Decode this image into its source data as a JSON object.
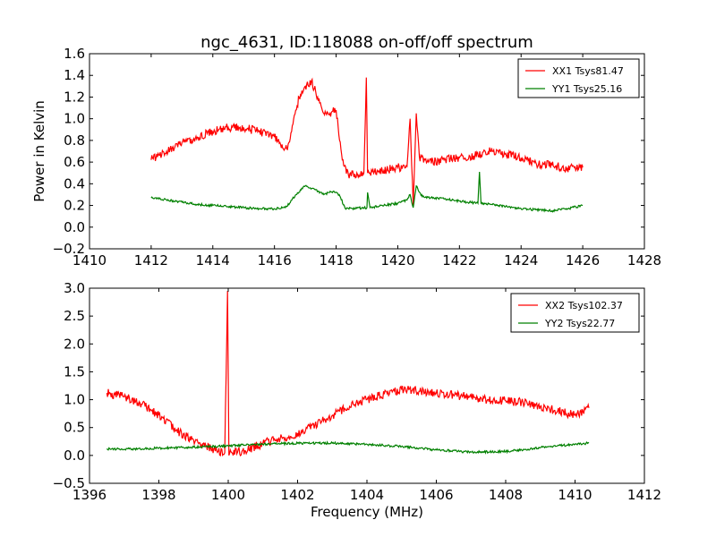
{
  "figure": {
    "title": "ngc_4631, ID:118088 on-off/off spectrum"
  },
  "chart_data": [
    {
      "type": "line",
      "title": "ngc_4631, ID:118088 on-off/off spectrum",
      "xlabel": "",
      "ylabel": "Power in Kelvin",
      "xlim": [
        1410,
        1428
      ],
      "ylim": [
        -0.2,
        1.6
      ],
      "xticks": [
        1410,
        1412,
        1414,
        1416,
        1418,
        1420,
        1422,
        1424,
        1426,
        1428
      ],
      "yticks": [
        -0.2,
        0.0,
        0.2,
        0.4,
        0.6,
        0.8,
        1.0,
        1.2,
        1.4,
        1.6
      ],
      "xtick_labels": [
        "1410",
        "1412",
        "1414",
        "1416",
        "1418",
        "1420",
        "1422",
        "1424",
        "1426",
        "1428"
      ],
      "ytick_labels": [
        "−0.2",
        "0.0",
        "0.2",
        "0.4",
        "0.6",
        "0.8",
        "1.0",
        "1.2",
        "1.4",
        "1.6"
      ],
      "grid": false,
      "legend_position": "top-right",
      "series": [
        {
          "name": "XX1 Tsys81.47",
          "color": "#ff0000",
          "x": [
            1412.0,
            1412.5,
            1413.0,
            1413.5,
            1414.0,
            1414.5,
            1415.0,
            1415.5,
            1416.0,
            1416.2,
            1416.4,
            1416.6,
            1416.8,
            1417.0,
            1417.2,
            1417.4,
            1417.6,
            1417.8,
            1418.0,
            1418.2,
            1418.4,
            1418.9,
            1418.98,
            1419.02,
            1419.1,
            1419.5,
            1420.0,
            1420.3,
            1420.4,
            1420.5,
            1420.6,
            1420.7,
            1421.0,
            1421.5,
            1422.0,
            1422.5,
            1423.0,
            1423.5,
            1424.0,
            1424.5,
            1425.0,
            1425.5,
            1426.0
          ],
          "y": [
            0.62,
            0.7,
            0.78,
            0.83,
            0.88,
            0.92,
            0.92,
            0.88,
            0.83,
            0.76,
            0.72,
            0.95,
            1.2,
            1.3,
            1.35,
            1.2,
            1.05,
            1.05,
            1.08,
            0.62,
            0.48,
            0.5,
            1.38,
            0.5,
            0.5,
            0.52,
            0.55,
            0.56,
            1.0,
            0.2,
            1.05,
            0.65,
            0.6,
            0.62,
            0.64,
            0.66,
            0.7,
            0.68,
            0.64,
            0.58,
            0.57,
            0.54,
            0.55
          ]
        },
        {
          "name": "YY1 Tsys25.16",
          "color": "#008000",
          "x": [
            1412.0,
            1412.5,
            1413.0,
            1413.5,
            1414.0,
            1414.5,
            1415.0,
            1415.5,
            1416.0,
            1416.4,
            1416.7,
            1417.0,
            1417.3,
            1417.6,
            1417.9,
            1418.1,
            1418.3,
            1419.0,
            1419.02,
            1419.1,
            1419.5,
            1420.0,
            1420.3,
            1420.4,
            1420.5,
            1420.6,
            1420.8,
            1421.5,
            1422.0,
            1422.6,
            1422.65,
            1422.7,
            1423.0,
            1423.5,
            1424.0,
            1424.5,
            1425.0,
            1425.5,
            1426.0
          ],
          "y": [
            0.27,
            0.25,
            0.23,
            0.21,
            0.2,
            0.19,
            0.18,
            0.17,
            0.17,
            0.19,
            0.3,
            0.38,
            0.35,
            0.3,
            0.33,
            0.3,
            0.17,
            0.18,
            0.32,
            0.18,
            0.2,
            0.22,
            0.25,
            0.3,
            0.18,
            0.38,
            0.28,
            0.26,
            0.24,
            0.22,
            0.51,
            0.22,
            0.21,
            0.19,
            0.17,
            0.16,
            0.15,
            0.17,
            0.2
          ]
        }
      ]
    },
    {
      "type": "line",
      "title": "",
      "xlabel": "Frequency (MHz)",
      "ylabel": "",
      "xlim": [
        1396,
        1412
      ],
      "ylim": [
        -0.5,
        3.0
      ],
      "xticks": [
        1396,
        1398,
        1400,
        1402,
        1404,
        1406,
        1408,
        1410,
        1412
      ],
      "yticks": [
        -0.5,
        0.0,
        0.5,
        1.0,
        1.5,
        2.0,
        2.5,
        3.0
      ],
      "xtick_labels": [
        "1396",
        "1398",
        "1400",
        "1402",
        "1404",
        "1406",
        "1408",
        "1410",
        "1412"
      ],
      "ytick_labels": [
        "−0.5",
        "0.0",
        "0.5",
        "1.0",
        "1.5",
        "2.0",
        "2.5",
        "3.0"
      ],
      "grid": false,
      "legend_position": "top-right",
      "series": [
        {
          "name": "XX2 Tsys102.37",
          "color": "#ff0000",
          "x": [
            1396.5,
            1397.0,
            1397.5,
            1398.0,
            1398.5,
            1399.0,
            1399.5,
            1399.9,
            1399.98,
            1400.02,
            1400.1,
            1400.5,
            1401.0,
            1401.5,
            1402.0,
            1402.5,
            1403.0,
            1403.5,
            1404.0,
            1404.5,
            1405.0,
            1405.5,
            1406.0,
            1406.5,
            1407.0,
            1407.5,
            1408.0,
            1408.5,
            1409.0,
            1409.5,
            1410.0,
            1410.4
          ],
          "y": [
            1.12,
            1.05,
            0.92,
            0.72,
            0.45,
            0.28,
            0.12,
            0.05,
            2.95,
            0.0,
            0.05,
            0.08,
            0.22,
            0.3,
            0.4,
            0.55,
            0.72,
            0.88,
            1.0,
            1.1,
            1.18,
            1.15,
            1.12,
            1.08,
            1.05,
            1.0,
            0.98,
            0.95,
            0.88,
            0.8,
            0.72,
            0.85
          ]
        },
        {
          "name": "YY2 Tsys22.77",
          "color": "#008000",
          "x": [
            1396.5,
            1397.0,
            1398.0,
            1399.0,
            1400.0,
            1401.0,
            1402.0,
            1403.0,
            1404.0,
            1405.0,
            1406.0,
            1407.0,
            1408.0,
            1409.0,
            1410.0,
            1410.4
          ],
          "y": [
            0.12,
            0.11,
            0.13,
            0.15,
            0.17,
            0.2,
            0.22,
            0.22,
            0.2,
            0.16,
            0.1,
            0.06,
            0.07,
            0.14,
            0.2,
            0.22
          ]
        }
      ]
    }
  ]
}
